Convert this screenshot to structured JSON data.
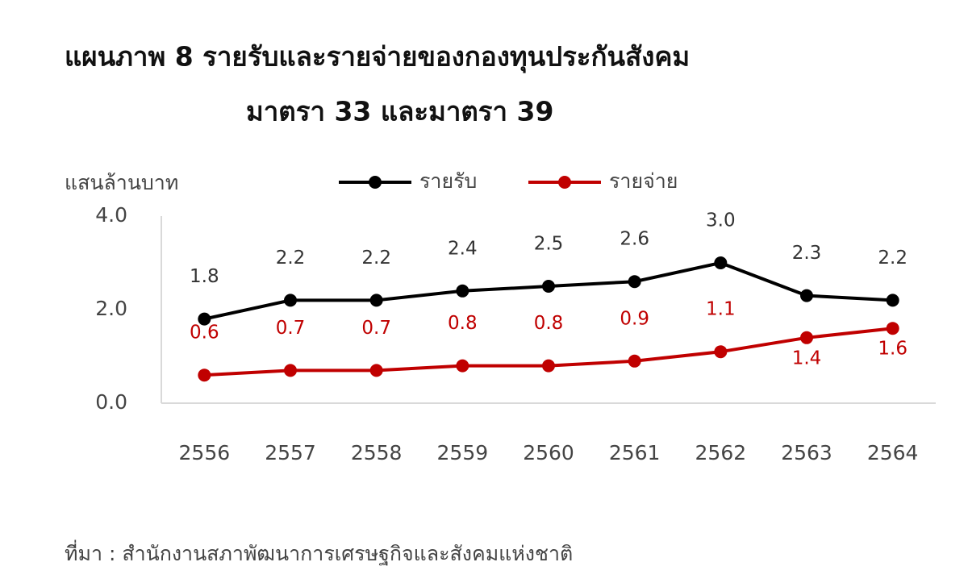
{
  "chart_data": {
    "type": "line",
    "title": "แผนภาพ  8  รายรับและรายจ่ายของกองทุนประกันสังคม",
    "subtitle": "มาตรา 33 และมาตรา 39",
    "y_label": "แสนล้านบาท",
    "source": "ที่มา : สำนักงานสภาพัฒนาการเศรษฐกิจและสังคมแห่งชาติ",
    "categories": [
      "2556",
      "2557",
      "2558",
      "2559",
      "2560",
      "2561",
      "2562",
      "2563",
      "2564"
    ],
    "series": [
      {
        "name": "รายรับ",
        "color": "#000000",
        "values": [
          1.8,
          2.2,
          2.2,
          2.4,
          2.5,
          2.6,
          3.0,
          2.3,
          2.2
        ],
        "value_labels": [
          "1.8",
          "2.2",
          "2.2",
          "2.4",
          "2.5",
          "2.6",
          "3.0",
          "2.3",
          "2.2"
        ]
      },
      {
        "name": "รายจ่าย",
        "color": "#c00000",
        "values": [
          0.6,
          0.7,
          0.7,
          0.8,
          0.8,
          0.9,
          1.1,
          1.4,
          1.6
        ]
      }
    ],
    "ylim": [
      0,
      4
    ],
    "yticks": [
      {
        "value": 0,
        "label": "0.0"
      },
      {
        "value": 2,
        "label": "2.0"
      },
      {
        "value": 4,
        "label": "4.0"
      }
    ],
    "grid": false,
    "legend": "top"
  }
}
